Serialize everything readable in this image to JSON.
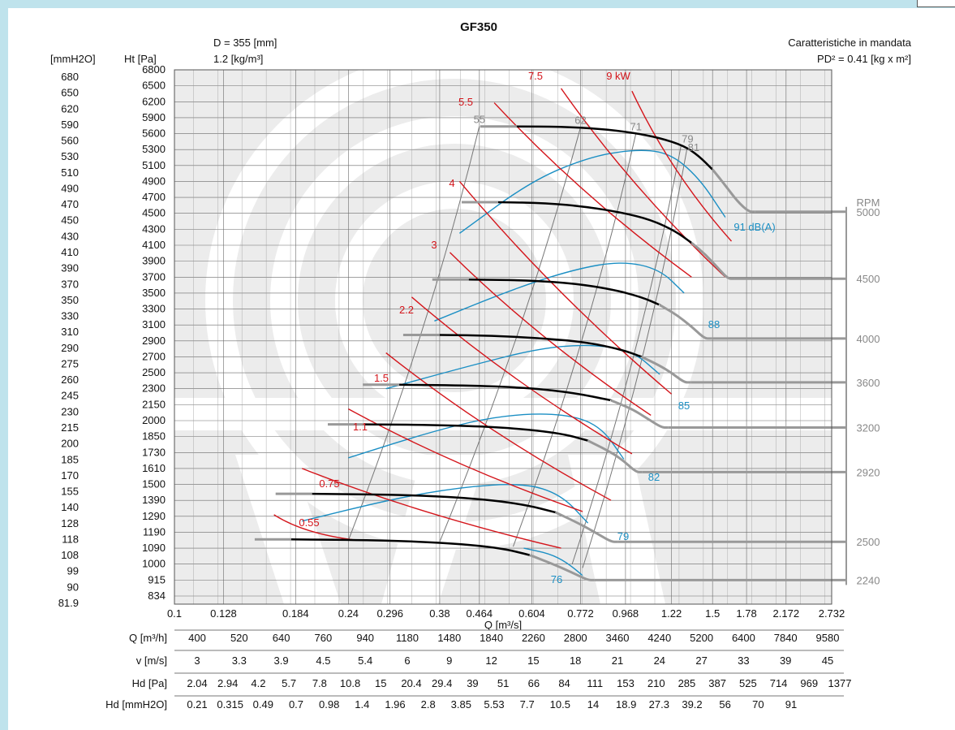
{
  "chart_data": {
    "type": "line",
    "title": "GF350",
    "diameter": "D = 355 [mm]",
    "density": "1.2 [kg/m³]",
    "characteristic": "Caratteristiche in mandata",
    "pd2": "PD² = 0.41 [kg x m²]",
    "y_label_left": "[mmH2O]",
    "y_label_right": "Ht [Pa]",
    "x_label": "Q [m³/s]",
    "rpm_label": "RPM",
    "x_scale": "log",
    "xlim": [
      0.1,
      2.732
    ],
    "y_scale": "pa",
    "x_ticks": [
      "0.1",
      "0.128",
      "0.184",
      "0.24",
      "0.296",
      "0.38",
      "0.464",
      "0.604",
      "0.772",
      "0.968",
      "1.22",
      "1.5",
      "1.78",
      "2.172",
      "2.732"
    ],
    "pa_ticks": [
      "6800",
      "6500",
      "6200",
      "5900",
      "5600",
      "5300",
      "5100",
      "4900",
      "4700",
      "4500",
      "4300",
      "4100",
      "3900",
      "3700",
      "3500",
      "3300",
      "3100",
      "2900",
      "2700",
      "2500",
      "2300",
      "2150",
      "2000",
      "1850",
      "1730",
      "1610",
      "1500",
      "1390",
      "1290",
      "1190",
      "1090",
      "1000",
      "915",
      "834"
    ],
    "mm_ticks": [
      "680",
      "650",
      "620",
      "590",
      "560",
      "530",
      "510",
      "490",
      "470",
      "450",
      "430",
      "410",
      "390",
      "370",
      "350",
      "330",
      "310",
      "290",
      "275",
      "260",
      "245",
      "230",
      "215",
      "200",
      "185",
      "170",
      "155",
      "140",
      "128",
      "118",
      "108",
      "99",
      "90",
      "81.9"
    ],
    "rpm_curves": [
      {
        "rpm": "5000",
        "q": [
          0.56,
          0.7,
          0.85,
          1.0,
          1.15,
          1.3,
          1.4,
          1.5,
          1.6,
          1.7,
          1.8
        ],
        "pa": [
          5735,
          5730,
          5690,
          5620,
          5520,
          5370,
          5220,
          5050,
          4850,
          4650,
          4520
        ]
      },
      {
        "rpm": "4500",
        "q": [
          0.51,
          0.65,
          0.8,
          0.95,
          1.1,
          1.25,
          1.35,
          1.45,
          1.55,
          1.62
        ],
        "pa": [
          4640,
          4630,
          4580,
          4510,
          4420,
          4270,
          4130,
          3980,
          3800,
          3680
        ]
      },
      {
        "rpm": "4000",
        "q": [
          0.44,
          0.6,
          0.75,
          0.9,
          1.05,
          1.15,
          1.25,
          1.35,
          1.44
        ],
        "pa": [
          3670,
          3660,
          3620,
          3550,
          3450,
          3350,
          3230,
          3080,
          2930
        ]
      },
      {
        "rpm": "3600",
        "q": [
          0.38,
          0.5,
          0.65,
          0.8,
          0.95,
          1.05,
          1.15,
          1.22,
          1.3
        ],
        "pa": [
          2975,
          2965,
          2930,
          2880,
          2790,
          2700,
          2590,
          2500,
          2380
        ]
      },
      {
        "rpm": "3200",
        "q": [
          0.31,
          0.45,
          0.6,
          0.75,
          0.9,
          1.0,
          1.08,
          1.16
        ],
        "pa": [
          2350,
          2340,
          2310,
          2260,
          2190,
          2110,
          2020,
          1935
        ]
      },
      {
        "rpm": "2920",
        "q": [
          0.26,
          0.4,
          0.55,
          0.7,
          0.8,
          0.88,
          0.95,
          1.02
        ],
        "pa": [
          1965,
          1958,
          1930,
          1880,
          1820,
          1750,
          1680,
          1585
        ]
      },
      {
        "rpm": "2500",
        "q": [
          0.2,
          0.32,
          0.45,
          0.58,
          0.68,
          0.76,
          0.83,
          0.9
        ],
        "pa": [
          1435,
          1428,
          1405,
          1365,
          1315,
          1250,
          1190,
          1130
        ]
      },
      {
        "rpm": "2240",
        "q": [
          0.18,
          0.28,
          0.4,
          0.52,
          0.6,
          0.68,
          0.74,
          0.8
        ],
        "pa": [
          1145,
          1140,
          1122,
          1090,
          1050,
          995,
          955,
          915
        ]
      }
    ],
    "noise_labels": [
      "91 dB(A)",
      "88",
      "85",
      "82",
      "79",
      "76"
    ],
    "power_labels": [
      "9 kW",
      "7.5",
      "5.5",
      "4",
      "3",
      "2.2",
      "1.5",
      "1.1",
      "0.75",
      "0.55"
    ],
    "efficiency_labels": [
      "55",
      "62",
      "71",
      "79",
      "81"
    ],
    "table": [
      {
        "label": "Q [m³/h]",
        "values": [
          "400",
          "520",
          "640",
          "760",
          "940",
          "1180",
          "1480",
          "1840",
          "2260",
          "2800",
          "3460",
          "4240",
          "5200",
          "6400",
          "7840",
          "9580"
        ]
      },
      {
        "label": "v [m/s]",
        "values": [
          "3",
          "3.3",
          "3.9",
          "4.5",
          "5.4",
          "6",
          "9",
          "12",
          "15",
          "18",
          "21",
          "24",
          "27",
          "33",
          "39",
          "45"
        ]
      },
      {
        "label": "Hd [Pa]",
        "values": [
          "2.04",
          "2.94",
          "4.2",
          "5.7",
          "7.8",
          "10.8",
          "15",
          "20.4",
          "29.4",
          "39",
          "51",
          "66",
          "84",
          "111",
          "153",
          "210",
          "285",
          "387",
          "525",
          "714",
          "969",
          "1377"
        ]
      },
      {
        "label": "Hd [mmH2O]",
        "values": [
          "0.21",
          "0.315",
          "0.49",
          "0.7",
          "0.98",
          "1.4",
          "1.96",
          "2.8",
          "3.85",
          "5.53",
          "7.7",
          "10.5",
          "14",
          "18.9",
          "27.3",
          "39.2",
          "56",
          "70",
          "91"
        ]
      }
    ],
    "colors": {
      "grid": "#555555",
      "rpm": "#000000",
      "rpm_ext": "#999999",
      "noise": "#1b8fc4",
      "power": "#d4151b",
      "eff": "#888888",
      "watermark": "#ececec"
    }
  }
}
